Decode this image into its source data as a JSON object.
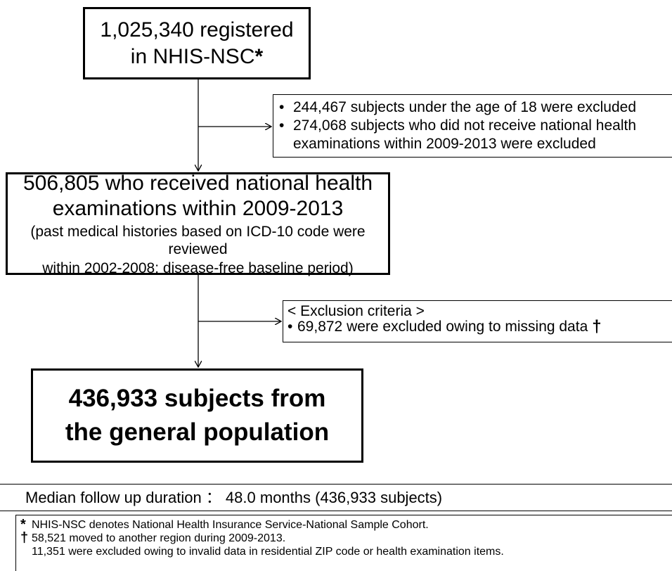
{
  "box1": {
    "line1": "1,025,340 registered",
    "line2": "in NHIS-NSC",
    "mark": "*"
  },
  "exclusion1": {
    "items": [
      "244,467 subjects under the age of 18 were excluded",
      "274,068 subjects who did not receive national health"
    ],
    "continuation": "examinations within 2009-2013 were excluded"
  },
  "box2": {
    "line1": "506,805 who received national health",
    "line2": "examinations within 2009-2013",
    "sub1": "(past medical histories based on ICD-10 code were reviewed",
    "sub2": "within 2002-2008: disease-free baseline period)"
  },
  "exclusion2": {
    "header": "< Exclusion criteria >",
    "item": "69,872 were excluded owing to missing data",
    "mark": "†"
  },
  "box3": {
    "line1": "436,933 subjects from",
    "line2": "the general population"
  },
  "median": {
    "text": "Median follow up duration ： 48.0 months (436,933 subjects)"
  },
  "notes": {
    "star_symbol": "*",
    "star_note": "NHIS-NSC denotes National Health Insurance Service-National Sample Cohort.",
    "dagger_symbol": "†",
    "dagger_note": "58,521 moved to another region during 2009-2013.",
    "dagger_note2": "11,351 were excluded owing to invalid data in residential ZIP code or health examination items."
  }
}
